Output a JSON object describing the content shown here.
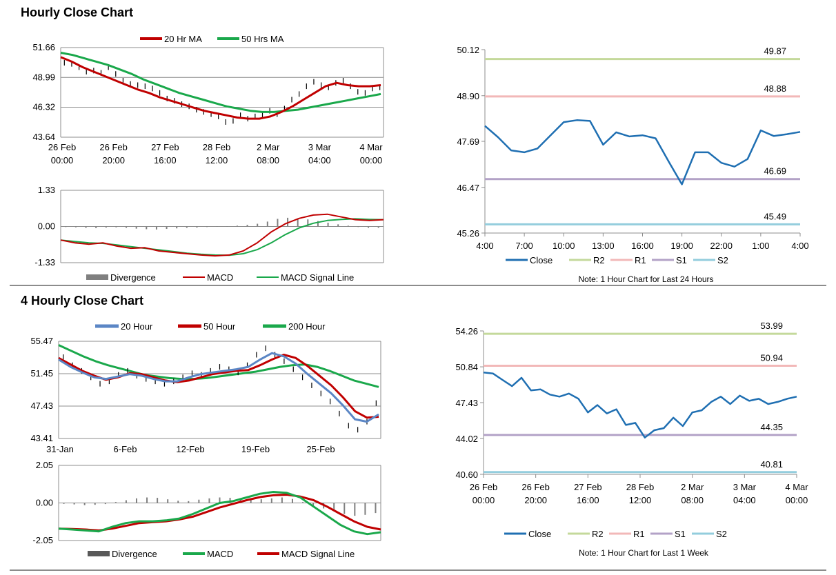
{
  "sections": [
    {
      "title": "Hourly Close Chart"
    },
    {
      "title": "4 Hourly Close Chart"
    }
  ],
  "colors": {
    "ma20": "#c00000",
    "ma50": "#1aa84b",
    "ma20_blue": "#5b86c5",
    "ma50_red": "#c00000",
    "ma200": "#1aa84b",
    "close": "#1f6fb2",
    "r2": "#c4d99b",
    "r1": "#f2b8b8",
    "s1": "#b3a2c7",
    "s2": "#93cddd",
    "divergence": "#7f7f7f",
    "macd_red": "#c00000",
    "signal_green": "#1aa84b"
  },
  "chart_data": [
    {
      "id": "hourly_price",
      "type": "line",
      "legend": [
        "20 Hr MA",
        "50 Hrs MA"
      ],
      "y_ticks": [
        "51.66",
        "48.99",
        "46.32",
        "43.64"
      ],
      "ylim": [
        43.64,
        51.66
      ],
      "x_ticks": [
        [
          "26 Feb",
          "00:00"
        ],
        [
          "26 Feb",
          "20:00"
        ],
        [
          "27 Feb",
          "16:00"
        ],
        [
          "28 Feb",
          "12:00"
        ],
        [
          "2 Mar",
          "08:00"
        ],
        [
          "3 Mar",
          "04:00"
        ],
        [
          "4 Mar",
          "00:00"
        ]
      ],
      "close": [
        50.3,
        50.2,
        49.9,
        49.5,
        49.6,
        49.4,
        49.9,
        49.3,
        48.7,
        48.4,
        48.3,
        48.2,
        48.0,
        47.6,
        47.1,
        46.9,
        46.6,
        46.4,
        46.1,
        45.9,
        45.7,
        45.5,
        45.0,
        45.1,
        45.6,
        45.3,
        45.5,
        45.6,
        46.0,
        45.7,
        46.2,
        47.0,
        47.5,
        48.2,
        48.6,
        48.3,
        48.1,
        48.5,
        48.7,
        48.2,
        47.7,
        47.6,
        48.0,
        48.1
      ],
      "series": [
        {
          "name": "20 Hr MA",
          "values": [
            50.8,
            50.4,
            49.9,
            49.5,
            49.1,
            48.7,
            48.3,
            47.9,
            47.6,
            47.2,
            46.9,
            46.6,
            46.3,
            46.0,
            45.8,
            45.6,
            45.4,
            45.3,
            45.3,
            45.5,
            45.9,
            46.4,
            47.0,
            47.6,
            48.2,
            48.5,
            48.3,
            48.2,
            48.2,
            48.3
          ]
        },
        {
          "name": "50 Hrs MA",
          "values": [
            51.2,
            51.0,
            50.7,
            50.4,
            50.1,
            49.7,
            49.3,
            48.8,
            48.4,
            48.0,
            47.6,
            47.3,
            47.0,
            46.7,
            46.4,
            46.2,
            46.0,
            45.9,
            45.9,
            46.0,
            46.1,
            46.3,
            46.5,
            46.7,
            46.9,
            47.1,
            47.3,
            47.5
          ]
        }
      ]
    },
    {
      "id": "hourly_macd",
      "type": "line",
      "legend": [
        "Divergence",
        "MACD",
        "MACD Signal Line"
      ],
      "y_ticks": [
        "1.33",
        "0.00",
        "-1.33"
      ],
      "ylim": [
        -1.33,
        1.33
      ],
      "divergence": [
        -0.02,
        -0.03,
        -0.05,
        -0.06,
        -0.04,
        -0.03,
        -0.05,
        -0.08,
        -0.1,
        -0.11,
        -0.09,
        -0.07,
        -0.05,
        -0.04,
        -0.02,
        -0.01,
        0.01,
        0.03,
        0.06,
        0.1,
        0.18,
        0.28,
        0.32,
        0.3,
        0.26,
        0.2,
        0.14,
        0.08,
        0.03,
        -0.02,
        -0.05,
        -0.05
      ],
      "series": [
        {
          "name": "MACD",
          "values": [
            -0.5,
            -0.6,
            -0.65,
            -0.6,
            -0.72,
            -0.8,
            -0.78,
            -0.9,
            -0.95,
            -1.0,
            -1.05,
            -1.08,
            -1.05,
            -0.9,
            -0.6,
            -0.2,
            0.1,
            0.3,
            0.42,
            0.45,
            0.35,
            0.25,
            0.22,
            0.25
          ]
        },
        {
          "name": "MACD Signal Line",
          "values": [
            -0.5,
            -0.55,
            -0.6,
            -0.62,
            -0.68,
            -0.74,
            -0.8,
            -0.86,
            -0.92,
            -0.98,
            -1.02,
            -1.05,
            -1.06,
            -1.0,
            -0.85,
            -0.6,
            -0.3,
            -0.05,
            0.12,
            0.22,
            0.26,
            0.28,
            0.26,
            0.25
          ]
        }
      ]
    },
    {
      "id": "hourly_levels",
      "type": "line",
      "title": "",
      "note": "Note: 1 Hour Chart for Last 24 Hours",
      "y_ticks": [
        "50.12",
        "48.90",
        "47.69",
        "46.47",
        "45.26"
      ],
      "ylim": [
        45.26,
        50.12
      ],
      "x_ticks": [
        "4:00",
        "7:00",
        "10:00",
        "13:00",
        "16:00",
        "19:00",
        "22:00",
        "1:00",
        "4:00"
      ],
      "levels": [
        {
          "name": "R2",
          "value": 49.87,
          "label": "49.87"
        },
        {
          "name": "R1",
          "value": 48.88,
          "label": "48.88"
        },
        {
          "name": "S1",
          "value": 46.69,
          "label": "46.69"
        },
        {
          "name": "S2",
          "value": 45.49,
          "label": "45.49"
        }
      ],
      "legend": [
        "Close",
        "R2",
        "R1",
        "S1",
        "S2"
      ],
      "close": [
        48.1,
        47.8,
        47.45,
        47.4,
        47.5,
        47.85,
        48.2,
        48.25,
        48.23,
        47.6,
        47.93,
        47.82,
        47.85,
        47.77,
        47.15,
        46.55,
        47.4,
        47.4,
        47.12,
        47.02,
        47.22,
        47.98,
        47.83,
        47.88,
        47.94
      ]
    },
    {
      "id": "four_hourly_price",
      "type": "line",
      "legend": [
        "20 Hour",
        "50 Hour",
        "200 Hour"
      ],
      "y_ticks": [
        "55.47",
        "51.45",
        "47.43",
        "43.41"
      ],
      "ylim": [
        43.41,
        55.47
      ],
      "x_ticks": [
        "31-Jan",
        "6-Feb",
        "12-Feb",
        "19-Feb",
        "25-Feb"
      ],
      "close": [
        53.5,
        52.5,
        51.8,
        51.0,
        50.2,
        50.5,
        51.3,
        51.8,
        51.2,
        50.8,
        50.5,
        50.2,
        50.5,
        51.0,
        51.5,
        51.3,
        51.8,
        52.3,
        52.0,
        51.6,
        52.5,
        53.8,
        54.6,
        53.8,
        53.0,
        52.0,
        51.0,
        50.0,
        49.0,
        48.0,
        46.5,
        45.0,
        44.5,
        45.5,
        47.8
      ]
    },
    {
      "id": "four_hourly_ma",
      "type": "line",
      "series": [
        {
          "name": "20 Hour",
          "values": [
            53.2,
            52.3,
            51.6,
            51.0,
            50.8,
            51.1,
            51.4,
            51.2,
            50.8,
            50.5,
            50.5,
            51.0,
            51.4,
            51.6,
            51.8,
            52.0,
            52.3,
            53.2,
            54.0,
            53.6,
            52.7,
            51.4,
            50.2,
            49.0,
            47.5,
            45.8,
            45.5,
            46.4
          ]
        },
        {
          "name": "50 Hour",
          "values": [
            53.4,
            52.6,
            51.8,
            51.2,
            50.7,
            51.0,
            51.5,
            51.4,
            51.0,
            50.6,
            50.4,
            50.6,
            51.0,
            51.4,
            51.6,
            51.8,
            51.9,
            52.5,
            53.2,
            53.8,
            53.4,
            52.4,
            51.2,
            50.0,
            48.5,
            46.8,
            46.0,
            46.1
          ]
        },
        {
          "name": "200 Hour",
          "values": [
            55.0,
            54.3,
            53.6,
            53.0,
            52.5,
            52.1,
            51.7,
            51.3,
            51.1,
            50.9,
            50.8,
            50.8,
            50.9,
            51.1,
            51.3,
            51.5,
            51.7,
            52.0,
            52.3,
            52.5,
            52.6,
            52.3,
            51.8,
            51.2,
            50.6,
            50.2,
            49.8
          ]
        }
      ]
    },
    {
      "id": "four_hourly_macd",
      "type": "line",
      "legend": [
        "Divergence",
        "MACD",
        "MACD Signal Line"
      ],
      "y_ticks": [
        "2.05",
        "0.00",
        "-2.05"
      ],
      "ylim": [
        -2.05,
        2.05
      ],
      "divergence": [
        -0.05,
        -0.08,
        -0.12,
        -0.1,
        -0.06,
        0.05,
        0.15,
        0.25,
        0.3,
        0.28,
        0.2,
        0.12,
        0.1,
        0.18,
        0.25,
        0.3,
        0.28,
        0.22,
        0.18,
        0.2,
        0.25,
        0.3,
        0.22,
        0.05,
        -0.15,
        -0.3,
        -0.45,
        -0.6,
        -0.7,
        -0.65,
        -0.55
      ],
      "series": [
        {
          "name": "MACD",
          "values": [
            -1.4,
            -1.45,
            -1.5,
            -1.55,
            -1.3,
            -1.1,
            -1.0,
            -1.0,
            -0.95,
            -0.85,
            -0.6,
            -0.3,
            0.0,
            0.1,
            0.3,
            0.5,
            0.6,
            0.55,
            0.3,
            -0.2,
            -0.7,
            -1.2,
            -1.55,
            -1.7,
            -1.6
          ]
        },
        {
          "name": "MACD Signal Line",
          "values": [
            -1.4,
            -1.42,
            -1.45,
            -1.5,
            -1.4,
            -1.25,
            -1.1,
            -1.05,
            -1.0,
            -0.9,
            -0.75,
            -0.5,
            -0.25,
            -0.05,
            0.15,
            0.32,
            0.42,
            0.45,
            0.35,
            0.15,
            -0.2,
            -0.6,
            -1.0,
            -1.3,
            -1.45
          ]
        }
      ]
    },
    {
      "id": "four_hourly_levels",
      "type": "line",
      "note": "Note: 1 Hour Chart for Last 1 Week",
      "y_ticks": [
        "54.26",
        "50.84",
        "47.43",
        "44.02",
        "40.60"
      ],
      "ylim": [
        40.6,
        54.26
      ],
      "x_ticks": [
        [
          "26 Feb",
          "00:00"
        ],
        [
          "26 Feb",
          "20:00"
        ],
        [
          "27 Feb",
          "16:00"
        ],
        [
          "28 Feb",
          "12:00"
        ],
        [
          "2 Mar",
          "08:00"
        ],
        [
          "3 Mar",
          "04:00"
        ],
        [
          "4 Mar",
          "00:00"
        ]
      ],
      "levels": [
        {
          "name": "R2",
          "value": 53.99,
          "label": "53.99"
        },
        {
          "name": "R1",
          "value": 50.94,
          "label": "50.94"
        },
        {
          "name": "S1",
          "value": 44.35,
          "label": "44.35"
        },
        {
          "name": "S2",
          "value": 40.81,
          "label": "40.81"
        }
      ],
      "legend": [
        "Close",
        "R2",
        "R1",
        "S1",
        "S2"
      ],
      "close": [
        50.3,
        50.2,
        49.6,
        49.0,
        49.8,
        48.6,
        48.7,
        48.2,
        48.0,
        48.3,
        47.8,
        46.5,
        47.2,
        46.4,
        46.8,
        45.3,
        45.5,
        44.1,
        44.8,
        45.0,
        46.0,
        45.2,
        46.5,
        46.7,
        47.5,
        48.0,
        47.3,
        48.1,
        47.6,
        47.8,
        47.3,
        47.5,
        47.8,
        48.0
      ]
    }
  ]
}
